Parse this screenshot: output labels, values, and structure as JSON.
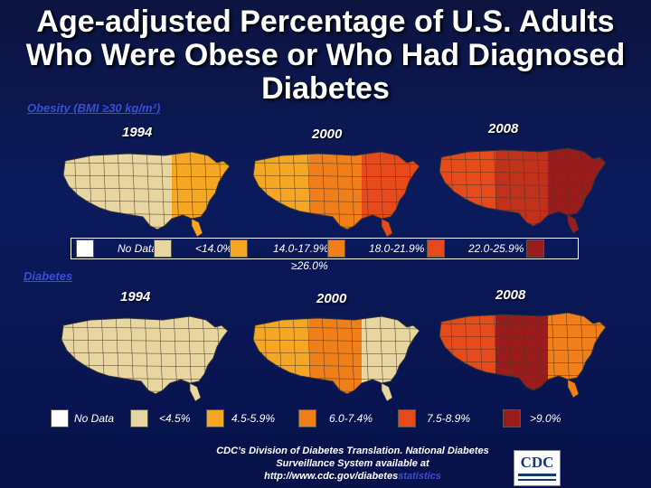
{
  "title": "Age-adjusted Percentage of U.S. Adults Who Were Obese or Who Had Diagnosed Diabetes",
  "obesity": {
    "label": "Obesity (BMI ≥30 kg/m²)",
    "years": [
      "1994",
      "2000",
      "2008"
    ],
    "legend": [
      {
        "label": "No Data",
        "color": "#ffffff"
      },
      {
        "label": "<14.0%",
        "color": "#e8d6a0"
      },
      {
        "label": "14.0-17.9%",
        "color": "#f5a623"
      },
      {
        "label": "18.0-21.9%",
        "color": "#f07f1a"
      },
      {
        "label": "22.0-25.9%",
        "color": "#e6491a"
      },
      {
        "label": "≥26.0%",
        "color": "#9a1c1c"
      }
    ],
    "map_colors": {
      "1994": [
        "#e8d6a0",
        "#e8d6a0",
        "#f5a623"
      ],
      "2000": [
        "#f5a623",
        "#f07f1a",
        "#e6491a"
      ],
      "2008": [
        "#e6491a",
        "#c0301a",
        "#9a1c1c"
      ]
    }
  },
  "diabetes": {
    "label": "Diabetes",
    "years": [
      "1994",
      "2000",
      "2008"
    ],
    "legend": [
      {
        "label": "No Data",
        "color": "#ffffff"
      },
      {
        "label": "<4.5%",
        "color": "#e8d6a0"
      },
      {
        "label": "4.5-5.9%",
        "color": "#f5a623"
      },
      {
        "label": "6.0-7.4%",
        "color": "#f07f1a"
      },
      {
        "label": "7.5-8.9%",
        "color": "#e6491a"
      },
      {
        "label": ">9.0%",
        "color": "#9a1c1c"
      }
    ],
    "map_colors": {
      "1994": [
        "#e8d6a0",
        "#e8d6a0",
        "#e8d6a0"
      ],
      "2000": [
        "#f5a623",
        "#f07f1a",
        "#e8d6a0"
      ],
      "2008": [
        "#e6491a",
        "#9a1c1c",
        "#f07f1a"
      ]
    }
  },
  "footer": {
    "line1": "CDC’s Division of Diabetes Translation. National Diabetes",
    "line2": "Surveillance System available at",
    "line3_main": "http://www.cdc.gov/diabetes",
    "line3_hl": "statistics"
  },
  "logo_text": "CDC"
}
